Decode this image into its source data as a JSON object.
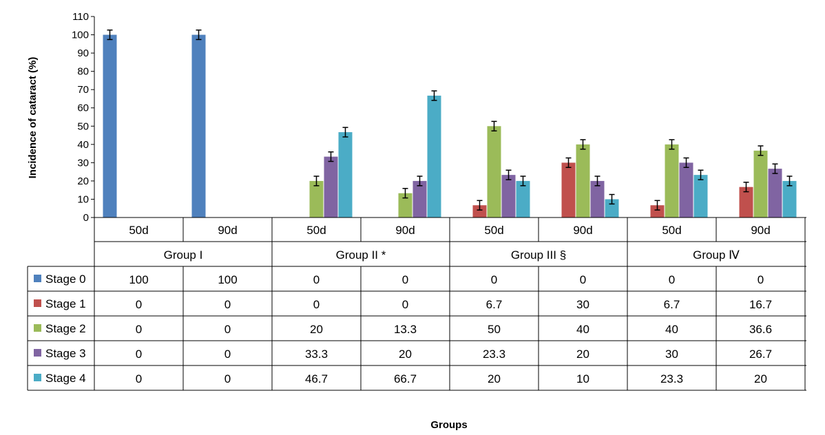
{
  "chart_data": {
    "type": "bar",
    "ylabel": "Incidence of cataract (%)",
    "xlabel": "Groups",
    "ylim": [
      0,
      110
    ],
    "yticks": [
      0,
      10,
      20,
      30,
      40,
      50,
      60,
      70,
      80,
      90,
      100,
      110
    ],
    "error_bars": true,
    "grid": false,
    "legend": "data-table",
    "groups": [
      {
        "name": "Group I",
        "periods": [
          "50d",
          "90d"
        ]
      },
      {
        "name": "Group II *",
        "periods": [
          "50d",
          "90d"
        ]
      },
      {
        "name": "Group III §",
        "periods": [
          "50d",
          "90d"
        ]
      },
      {
        "name": "Group Ⅳ",
        "periods": [
          "50d",
          "90d"
        ]
      }
    ],
    "series": [
      {
        "name": "Stage 0",
        "color": "#4F81BD",
        "values": [
          100,
          100,
          0,
          0,
          0,
          0,
          0,
          0
        ],
        "labels": [
          "100",
          "100",
          "0",
          "0",
          "0",
          "0",
          "0",
          "0"
        ]
      },
      {
        "name": "Stage 1",
        "color": "#C0504D",
        "values": [
          0,
          0,
          0,
          0,
          6.7,
          30,
          6.7,
          16.7
        ],
        "labels": [
          "0",
          "0",
          "0",
          "0",
          "6.7",
          "30",
          "6.7",
          "16.7"
        ]
      },
      {
        "name": "Stage 2",
        "color": "#9BBB59",
        "values": [
          0,
          0,
          20,
          13.3,
          50,
          40,
          40,
          36.6
        ],
        "labels": [
          "0",
          "0",
          "20",
          "13.3",
          "50",
          "40",
          "40",
          "36.6"
        ]
      },
      {
        "name": "Stage 3",
        "color": "#8064A2",
        "values": [
          0,
          0,
          33.3,
          20,
          23.3,
          20,
          30,
          26.7
        ],
        "labels": [
          "0",
          "0",
          "33.3",
          "20",
          "23.3",
          "20",
          "30",
          "26.7"
        ]
      },
      {
        "name": "Stage 4",
        "color": "#4BACC6",
        "values": [
          0,
          0,
          46.7,
          66.7,
          20,
          10,
          23.3,
          20
        ],
        "labels": [
          "0",
          "0",
          "46.7",
          "66.7",
          "20",
          "10",
          "23.3",
          "20"
        ]
      }
    ]
  }
}
